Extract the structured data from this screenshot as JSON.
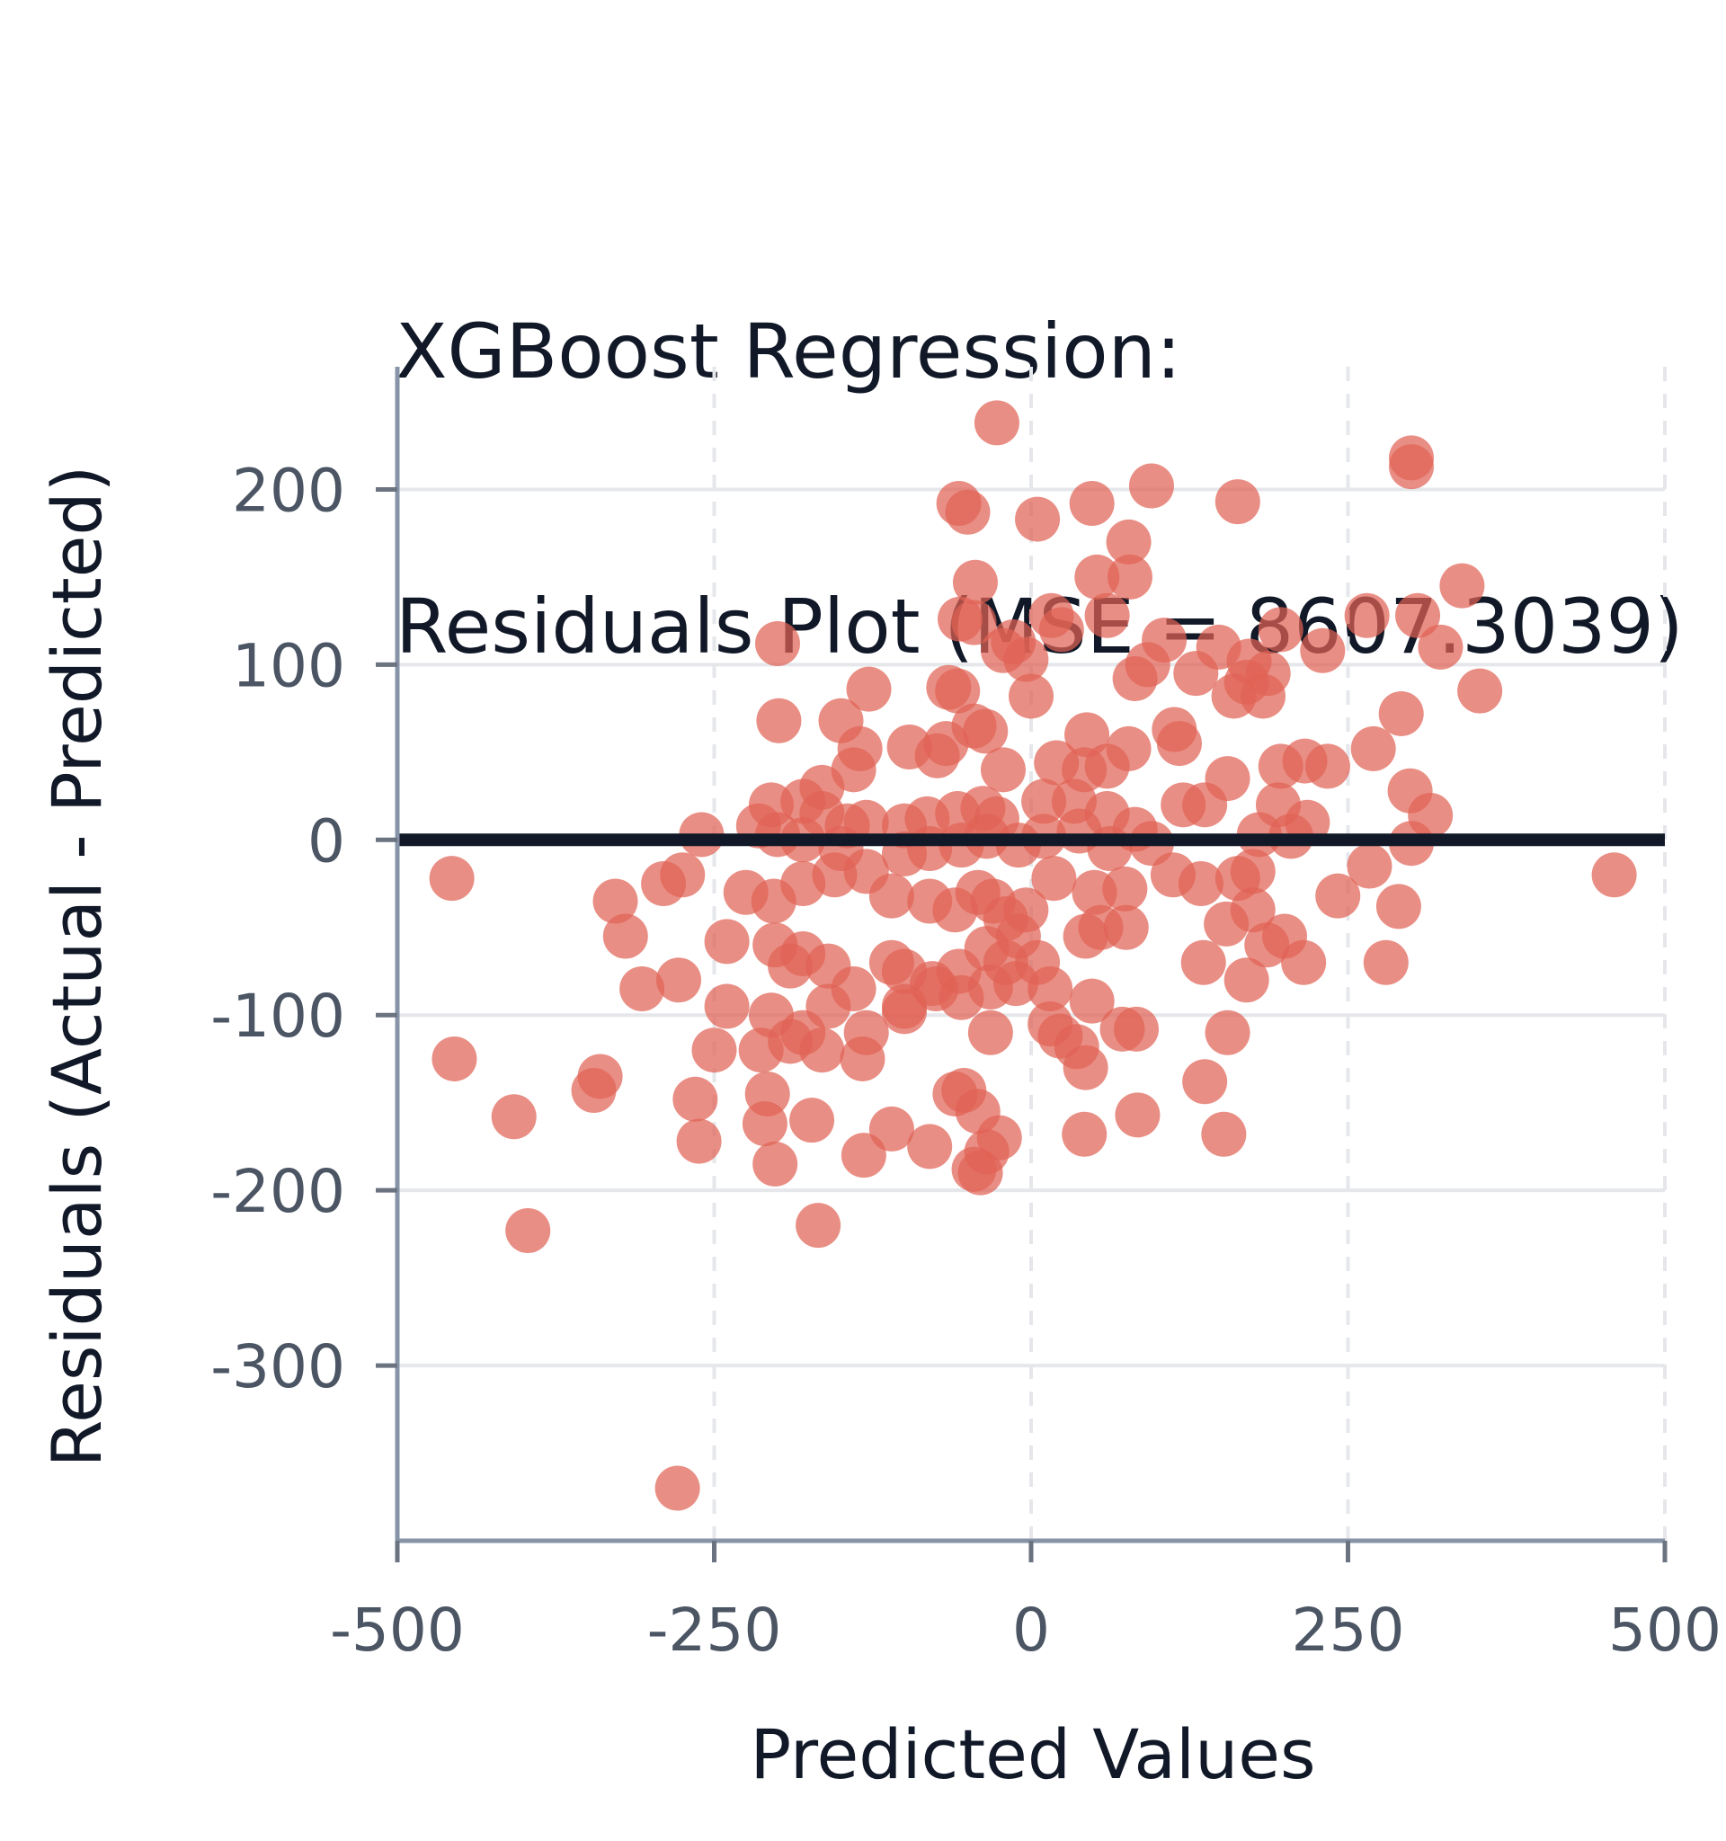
{
  "chart_data": {
    "type": "scatter",
    "title_lines": [
      "XGBoost Regression:",
      "Residuals Plot (MSE = 8607.3039)"
    ],
    "xlabel": "Predicted Values",
    "ylabel": "Residuals (Actual - Predicted)",
    "xlim": [
      -500,
      500
    ],
    "ylim": [
      -400,
      270
    ],
    "x_ticks": [
      -500,
      -250,
      0,
      250,
      500
    ],
    "x_tick_labels": [
      "-500",
      "-250",
      "0",
      "250",
      "500"
    ],
    "y_ticks": [
      200,
      100,
      0,
      -100,
      -200,
      -300
    ],
    "y_tick_labels": [
      "200",
      "100",
      "0",
      "-100",
      "-200",
      "-300"
    ],
    "grid": true,
    "reference_line_y": 0,
    "point_color": "#e06355",
    "reference_line_color": "#111827",
    "points": [
      [
        -27,
        238
      ],
      [
        300,
        218
      ],
      [
        300,
        213
      ],
      [
        95,
        202
      ],
      [
        -57,
        192
      ],
      [
        -50,
        187
      ],
      [
        48,
        192
      ],
      [
        163,
        193
      ],
      [
        5,
        183
      ],
      [
        77,
        170
      ],
      [
        -44,
        147
      ],
      [
        52,
        150
      ],
      [
        78,
        150
      ],
      [
        340,
        145
      ],
      [
        -56,
        126
      ],
      [
        -45,
        124
      ],
      [
        60,
        128
      ],
      [
        -200,
        112
      ],
      [
        105,
        114
      ],
      [
        148,
        110
      ],
      [
        197,
        120
      ],
      [
        265,
        128
      ],
      [
        305,
        128
      ],
      [
        323,
        110
      ],
      [
        16,
        128
      ],
      [
        24,
        120
      ],
      [
        -14,
        113
      ],
      [
        -4,
        103
      ],
      [
        -22,
        108
      ],
      [
        92,
        100
      ],
      [
        82,
        92
      ],
      [
        172,
        102
      ],
      [
        187,
        95
      ],
      [
        230,
        108
      ],
      [
        354,
        85
      ],
      [
        -128,
        86
      ],
      [
        -65,
        87
      ],
      [
        -58,
        85
      ],
      [
        0,
        82
      ],
      [
        -199,
        68
      ],
      [
        -150,
        68
      ],
      [
        -135,
        52
      ],
      [
        -96,
        53
      ],
      [
        -67,
        55
      ],
      [
        -74,
        48
      ],
      [
        -45,
        65
      ],
      [
        -36,
        62
      ],
      [
        44,
        60
      ],
      [
        113,
        63
      ],
      [
        117,
        55
      ],
      [
        130,
        95
      ],
      [
        160,
        82
      ],
      [
        170,
        90
      ],
      [
        183,
        82
      ],
      [
        292,
        72
      ],
      [
        270,
        52
      ],
      [
        -140,
        40
      ],
      [
        -165,
        30
      ],
      [
        -22,
        40
      ],
      [
        20,
        44
      ],
      [
        42,
        40
      ],
      [
        60,
        42
      ],
      [
        77,
        52
      ],
      [
        155,
        35
      ],
      [
        197,
        42
      ],
      [
        216,
        45
      ],
      [
        234,
        42
      ],
      [
        -205,
        20
      ],
      [
        -180,
        22
      ],
      [
        -165,
        15
      ],
      [
        -145,
        8
      ],
      [
        -130,
        10
      ],
      [
        -100,
        8
      ],
      [
        -82,
        12
      ],
      [
        -58,
        15
      ],
      [
        -38,
        18
      ],
      [
        -27,
        12
      ],
      [
        10,
        22
      ],
      [
        34,
        22
      ],
      [
        60,
        15
      ],
      [
        82,
        6
      ],
      [
        120,
        20
      ],
      [
        137,
        20
      ],
      [
        195,
        20
      ],
      [
        218,
        10
      ],
      [
        -260,
        3
      ],
      [
        -215,
        8
      ],
      [
        -200,
        3
      ],
      [
        -180,
        0
      ],
      [
        -150,
        -5
      ],
      [
        -100,
        -8
      ],
      [
        -80,
        -5
      ],
      [
        -55,
        -3
      ],
      [
        -35,
        2
      ],
      [
        -10,
        -3
      ],
      [
        10,
        2
      ],
      [
        38,
        5
      ],
      [
        62,
        -5
      ],
      [
        95,
        -2
      ],
      [
        180,
        3
      ],
      [
        205,
        2
      ],
      [
        299,
        28
      ],
      [
        315,
        14
      ],
      [
        300,
        -2
      ],
      [
        -457,
        -22
      ],
      [
        -290,
        -25
      ],
      [
        -275,
        -20
      ],
      [
        -225,
        -30
      ],
      [
        -203,
        -35
      ],
      [
        -180,
        -25
      ],
      [
        -155,
        -20
      ],
      [
        -130,
        -18
      ],
      [
        -110,
        -32
      ],
      [
        -80,
        -35
      ],
      [
        -60,
        -40
      ],
      [
        -42,
        -30
      ],
      [
        -30,
        -35
      ],
      [
        -20,
        -45
      ],
      [
        -4,
        -40
      ],
      [
        18,
        -22
      ],
      [
        50,
        -30
      ],
      [
        74,
        -28
      ],
      [
        112,
        -20
      ],
      [
        134,
        -25
      ],
      [
        163,
        -22
      ],
      [
        175,
        -18
      ],
      [
        175,
        -40
      ],
      [
        154,
        -48
      ],
      [
        242,
        -32
      ],
      [
        267,
        -15
      ],
      [
        290,
        -38
      ],
      [
        460,
        -20
      ],
      [
        -328,
        -35
      ],
      [
        -320,
        -55
      ],
      [
        -240,
        -58
      ],
      [
        -202,
        -60
      ],
      [
        -190,
        -72
      ],
      [
        -180,
        -65
      ],
      [
        -160,
        -72
      ],
      [
        -140,
        -85
      ],
      [
        -110,
        -70
      ],
      [
        -100,
        -75
      ],
      [
        -78,
        -82
      ],
      [
        -57,
        -75
      ],
      [
        -35,
        -62
      ],
      [
        -20,
        -70
      ],
      [
        -10,
        -55
      ],
      [
        5,
        -70
      ],
      [
        15,
        -85
      ],
      [
        43,
        -55
      ],
      [
        55,
        -50
      ],
      [
        75,
        -50
      ],
      [
        136,
        -70
      ],
      [
        186,
        -60
      ],
      [
        200,
        -55
      ],
      [
        215,
        -70
      ],
      [
        280,
        -70
      ],
      [
        -307,
        -85
      ],
      [
        -278,
        -80
      ],
      [
        -240,
        -95
      ],
      [
        -205,
        -100
      ],
      [
        -180,
        -110
      ],
      [
        -160,
        -95
      ],
      [
        -130,
        -110
      ],
      [
        -100,
        -98
      ],
      [
        -75,
        -85
      ],
      [
        -55,
        -90
      ],
      [
        -32,
        -84
      ],
      [
        -12,
        -82
      ],
      [
        15,
        -105
      ],
      [
        36,
        -118
      ],
      [
        48,
        -92
      ],
      [
        72,
        -108
      ],
      [
        170,
        -80
      ],
      [
        -455,
        -125
      ],
      [
        -250,
        -120
      ],
      [
        -213,
        -120
      ],
      [
        -190,
        -115
      ],
      [
        -165,
        -120
      ],
      [
        -133,
        -125
      ],
      [
        -100,
        -95
      ],
      [
        -32,
        -110
      ],
      [
        23,
        -112
      ],
      [
        43,
        -130
      ],
      [
        83,
        -108
      ],
      [
        137,
        -138
      ],
      [
        155,
        -110
      ],
      [
        -340,
        -135
      ],
      [
        -345,
        -143
      ],
      [
        -265,
        -148
      ],
      [
        -208,
        -145
      ],
      [
        -210,
        -162
      ],
      [
        -173,
        -160
      ],
      [
        -132,
        -180
      ],
      [
        -110,
        -165
      ],
      [
        -80,
        -175
      ],
      [
        -60,
        -145
      ],
      [
        -53,
        -143
      ],
      [
        -42,
        -155
      ],
      [
        -25,
        -170
      ],
      [
        -35,
        -178
      ],
      [
        -40,
        -190
      ],
      [
        -45,
        -188
      ],
      [
        42,
        -168
      ],
      [
        84,
        -157
      ],
      [
        152,
        -168
      ],
      [
        -408,
        -158
      ],
      [
        -262,
        -172
      ],
      [
        -202,
        -185
      ],
      [
        -168,
        -220
      ],
      [
        -397,
        -223
      ],
      [
        -279,
        -370
      ]
    ]
  }
}
